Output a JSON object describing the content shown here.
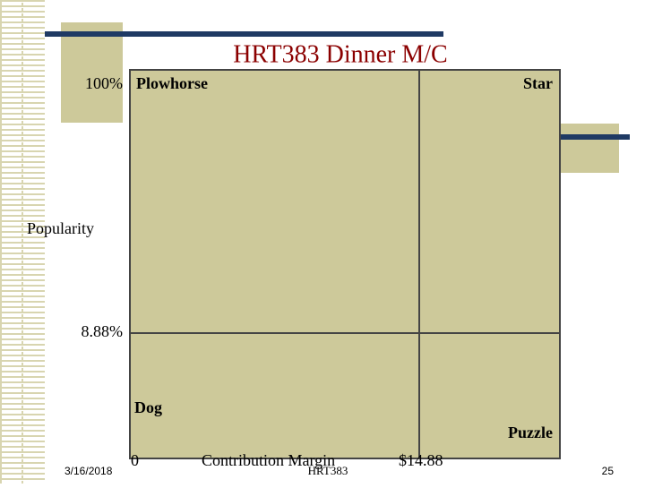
{
  "header": {
    "title": "HRT383 Dinner M/C"
  },
  "matrix": {
    "y_axis_label": "Popularity",
    "y_top_label": "100%",
    "y_mid_label": "8.88%",
    "x_axis_label": "Contribution Margin",
    "x_start_label": "0",
    "x_mid_label": "$14.88",
    "quadrants": {
      "top_left": "Plowhorse",
      "top_right": "Star",
      "bottom_left": "Dog",
      "bottom_right": "Puzzle"
    }
  },
  "footer": {
    "date": "3/16/2018",
    "center": "HRT383",
    "page": "25"
  }
}
